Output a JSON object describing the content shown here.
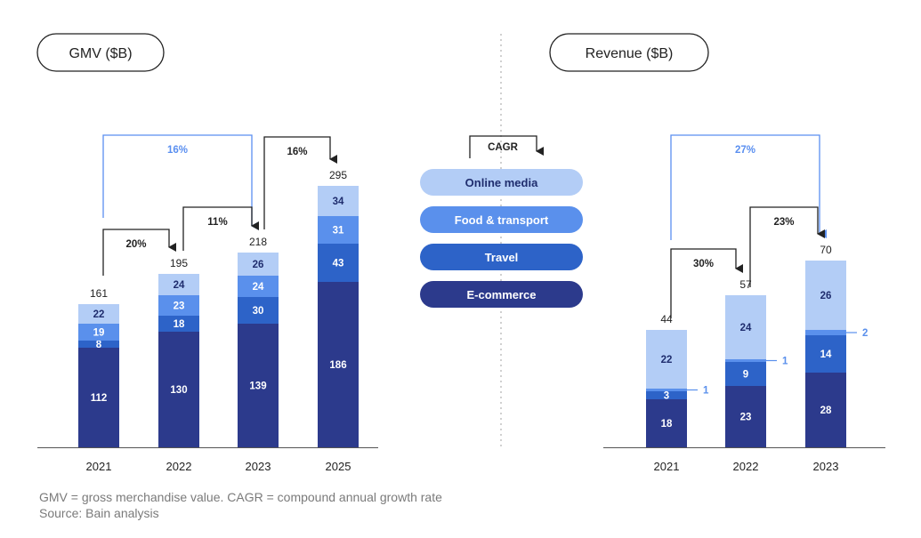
{
  "colors": {
    "ecommerce": "#2c3a8c",
    "travel": "#2d63c8",
    "food_transport": "#5a90ec",
    "online_media": "#b3cdf6",
    "highlight_arrow": "#5a8ff0",
    "dark_arrow": "#222222",
    "divider": "#b0b0b0",
    "pill_text": "#ffffff",
    "pill_text_dark": "#1f2d6e"
  },
  "legend": {
    "title": "CAGR",
    "items": [
      "Online media",
      "Food & transport",
      "Travel",
      "E-commerce"
    ]
  },
  "notes": {
    "definition": "GMV = gross merchandise value. CAGR = compound annual growth rate",
    "source": "Source: Bain analysis"
  },
  "chart_data": [
    {
      "type": "bar",
      "stacked": true,
      "title": "GMV ($B)",
      "categories": [
        "2021",
        "2022",
        "2023",
        "2025"
      ],
      "series": [
        {
          "name": "E-commerce",
          "values": [
            112,
            130,
            139,
            186
          ]
        },
        {
          "name": "Travel",
          "values": [
            8,
            18,
            30,
            43
          ]
        },
        {
          "name": "Food & transport",
          "values": [
            19,
            23,
            24,
            31
          ]
        },
        {
          "name": "Online media",
          "values": [
            22,
            24,
            26,
            34
          ]
        }
      ],
      "totals": [
        161,
        195,
        218,
        295
      ],
      "cagr_annotations": [
        {
          "from": "2021",
          "to": "2023",
          "label": "16%",
          "highlight": true
        },
        {
          "from": "2021",
          "to": "2022",
          "label": "20%",
          "highlight": false
        },
        {
          "from": "2022",
          "to": "2023",
          "label": "11%",
          "highlight": false
        },
        {
          "from": "2023",
          "to": "2025",
          "label": "16%",
          "highlight": false
        }
      ]
    },
    {
      "type": "bar",
      "stacked": true,
      "title": "Revenue ($B)",
      "categories": [
        "2021",
        "2022",
        "2023"
      ],
      "series": [
        {
          "name": "E-commerce",
          "values": [
            18,
            23,
            28
          ]
        },
        {
          "name": "Travel",
          "values": [
            3,
            9,
            14
          ]
        },
        {
          "name": "Food & transport",
          "values": [
            1,
            1,
            2
          ]
        },
        {
          "name": "Online media",
          "values": [
            22,
            24,
            26
          ]
        }
      ],
      "totals": [
        44,
        57,
        70
      ],
      "callouts": [
        "1",
        "1",
        "2"
      ],
      "cagr_annotations": [
        {
          "from": "2021",
          "to": "2023",
          "label": "27%",
          "highlight": true
        },
        {
          "from": "2021",
          "to": "2022",
          "label": "30%",
          "highlight": false
        },
        {
          "from": "2022",
          "to": "2023",
          "label": "23%",
          "highlight": false
        }
      ]
    }
  ]
}
